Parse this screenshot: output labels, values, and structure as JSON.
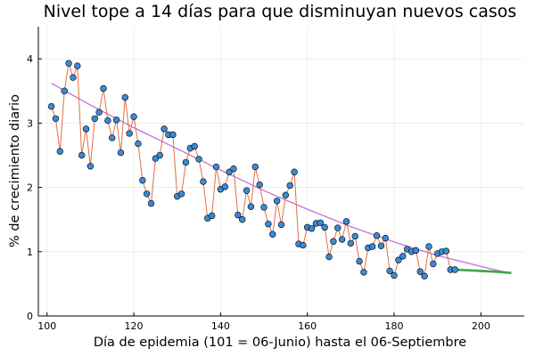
{
  "chart_data": {
    "type": "line",
    "title": "Nivel tope a 14 días para que disminuyan nuevos casos",
    "xlabel": "Día de epidemia (101 = 06-Junio) hasta el 06-Septiembre",
    "ylabel": "% de crecimiento diario",
    "xlim": [
      98,
      210
    ],
    "ylim": [
      0,
      4.5
    ],
    "x_ticks": [
      100,
      120,
      140,
      160,
      180,
      200
    ],
    "y_ticks": [
      0,
      1,
      2,
      3,
      4
    ],
    "grid": true,
    "legend": "none",
    "colors": {
      "observed_line": "#e26f46",
      "observed_points": "#3a8ad6",
      "trend": "#c271d2",
      "forecast": "#3da44d"
    },
    "series": [
      {
        "role": "observed",
        "x": [
          101,
          102,
          103,
          104,
          105,
          106,
          107,
          108,
          109,
          110,
          111,
          112,
          113,
          114,
          115,
          116,
          117,
          118,
          119,
          120,
          121,
          122,
          123,
          124,
          125,
          126,
          127,
          128,
          129,
          130,
          131,
          132,
          133,
          134,
          135,
          136,
          137,
          138,
          139,
          140,
          141,
          142,
          143,
          144,
          145,
          146,
          147,
          148,
          149,
          150,
          151,
          152,
          153,
          154,
          155,
          156,
          157,
          158,
          159,
          160,
          161,
          162,
          163,
          164,
          165,
          166,
          167,
          168,
          169,
          170,
          171,
          172,
          173,
          174,
          175,
          176,
          177,
          178,
          179,
          180,
          181,
          182,
          183,
          184,
          185,
          186,
          187,
          188,
          189,
          190,
          191,
          192,
          193,
          194
        ],
        "y": [
          3.26,
          3.07,
          2.56,
          3.5,
          3.93,
          3.71,
          3.89,
          2.5,
          2.91,
          2.33,
          3.07,
          3.17,
          3.54,
          3.04,
          2.77,
          3.05,
          2.54,
          3.4,
          2.84,
          3.1,
          2.68,
          2.11,
          1.9,
          1.75,
          2.45,
          2.5,
          2.91,
          2.82,
          2.82,
          1.86,
          1.9,
          2.39,
          2.61,
          2.64,
          2.44,
          2.09,
          1.52,
          1.56,
          2.32,
          1.97,
          2.01,
          2.24,
          2.29,
          1.57,
          1.5,
          1.95,
          1.7,
          2.32,
          2.04,
          1.69,
          1.43,
          1.27,
          1.79,
          1.42,
          1.88,
          2.03,
          2.24,
          1.12,
          1.1,
          1.38,
          1.36,
          1.44,
          1.45,
          1.38,
          0.92,
          1.16,
          1.37,
          1.19,
          1.47,
          1.13,
          1.24,
          0.85,
          0.68,
          1.06,
          1.08,
          1.25,
          1.09,
          1.21,
          0.7,
          0.63,
          0.87,
          0.93,
          1.04,
          1.0,
          1.02,
          0.69,
          0.62,
          1.08,
          0.81,
          0.97,
          1.0,
          1.01,
          0.72,
          0.72
        ]
      },
      {
        "role": "trend",
        "x": [
          101,
          110,
          120,
          130,
          140,
          150,
          160,
          170,
          180,
          190,
          200,
          207
        ],
        "y": [
          3.62,
          3.28,
          2.93,
          2.6,
          2.27,
          1.95,
          1.66,
          1.39,
          1.15,
          0.94,
          0.77,
          0.66
        ]
      },
      {
        "role": "forecast",
        "x": [
          194,
          197,
          200,
          203,
          207
        ],
        "y": [
          0.72,
          0.71,
          0.7,
          0.69,
          0.67
        ]
      }
    ]
  }
}
